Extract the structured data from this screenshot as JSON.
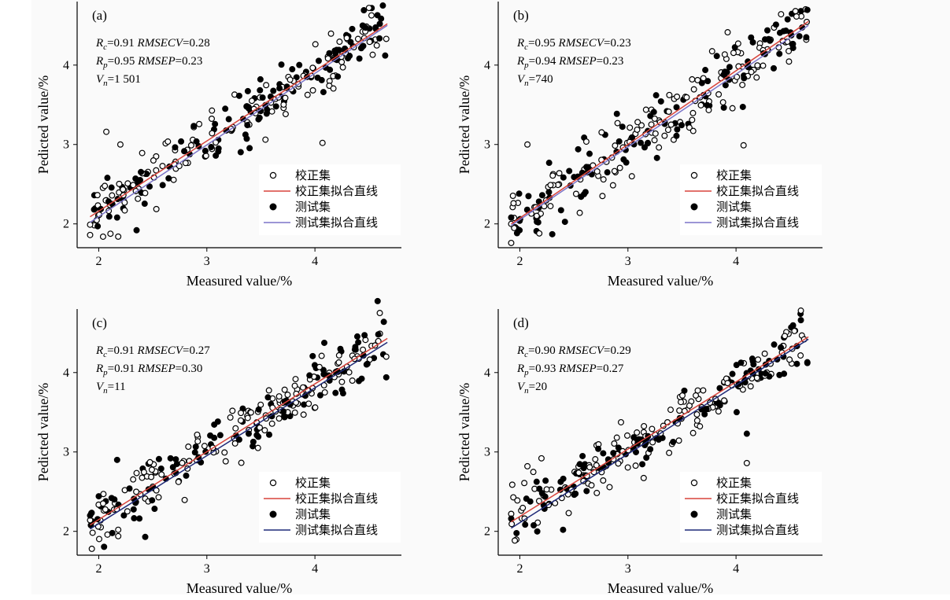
{
  "colors": {
    "calib_line": "#d9443c",
    "test_line_ab": "#7b74c8",
    "test_line_cd": "#1f2a78",
    "marker": "#000000"
  },
  "chart_data": [
    {
      "type": "scatter",
      "panel_label": "(a)",
      "xlabel": "Measured value/%",
      "ylabel": "Pedicted value/%",
      "xlim": [
        1.8,
        4.8
      ],
      "ylim": [
        1.7,
        4.8
      ],
      "xticks": [
        "2",
        "3",
        "4"
      ],
      "yticks": [
        "2",
        "3",
        "4"
      ],
      "stats": {
        "rc": "0.91",
        "rmsecv": "0.28",
        "rp": "0.95",
        "rmsep": "0.23",
        "vn": "1 501"
      },
      "legend": {
        "calib": "校正集",
        "calib_fit": "校正集拟合直线",
        "test": "测试集",
        "test_fit": "测试集拟合直线"
      },
      "calib_fit": {
        "x": [
          1.92,
          4.67
        ],
        "y": [
          2.09,
          4.52
        ]
      },
      "test_fit": {
        "x": [
          1.92,
          4.67
        ],
        "y": [
          2.02,
          4.5
        ]
      },
      "outliers_calib": [
        [
          1.92,
          1.99
        ],
        [
          1.92,
          1.86
        ],
        [
          2.07,
          3.16
        ],
        [
          2.18,
          1.84
        ],
        [
          2.2,
          3.0
        ],
        [
          4.07,
          3.02
        ],
        [
          4.5,
          4.72
        ],
        [
          4.66,
          4.33
        ]
      ],
      "outliers_test": [
        [
          2.08,
          2.58
        ],
        [
          2.17,
          2.08
        ],
        [
          2.35,
          1.92
        ],
        [
          4.6,
          4.52
        ],
        [
          4.65,
          4.12
        ]
      ]
    },
    {
      "type": "scatter",
      "panel_label": "(b)",
      "xlabel": "Measured value/%",
      "ylabel": "Pedicted value/%",
      "xlim": [
        1.8,
        4.8
      ],
      "ylim": [
        1.7,
        4.8
      ],
      "xticks": [
        "2",
        "3",
        "4"
      ],
      "yticks": [
        "2",
        "3",
        "4"
      ],
      "stats": {
        "rc": "0.95",
        "rmsecv": "0.23",
        "rp": "0.94",
        "rmsep": "0.23",
        "vn": "740"
      },
      "legend": {
        "calib": "校正集",
        "calib_fit": "校正集拟合直线",
        "test": "测试集",
        "test_fit": "测试集拟合直线"
      },
      "calib_fit": {
        "x": [
          1.92,
          4.67
        ],
        "y": [
          2.0,
          4.55
        ]
      },
      "test_fit": {
        "x": [
          1.92,
          4.67
        ],
        "y": [
          1.98,
          4.5
        ]
      },
      "outliers_calib": [
        [
          1.92,
          1.76
        ],
        [
          1.92,
          2.0
        ],
        [
          2.07,
          3.0
        ],
        [
          2.18,
          1.88
        ],
        [
          4.07,
          2.99
        ],
        [
          4.55,
          4.68
        ],
        [
          4.65,
          4.32
        ]
      ],
      "outliers_test": [
        [
          1.92,
          2.08
        ],
        [
          2.08,
          2.35
        ],
        [
          2.17,
          2.02
        ],
        [
          2.3,
          1.87
        ],
        [
          4.6,
          4.68
        ],
        [
          4.65,
          4.35
        ]
      ]
    },
    {
      "type": "scatter",
      "panel_label": "(c)",
      "xlabel": "Measured value/%",
      "ylabel": "Pedicted value/%",
      "xlim": [
        1.8,
        4.8
      ],
      "ylim": [
        1.7,
        4.8
      ],
      "xticks": [
        "2",
        "3",
        "4"
      ],
      "yticks": [
        "2",
        "3",
        "4"
      ],
      "stats": {
        "rc": "0.91",
        "rmsecv": "0.27",
        "rp": "0.91",
        "rmsep": "0.30",
        "vn": "11"
      },
      "legend": {
        "calib": "校正集",
        "calib_fit": "校正集拟合直线",
        "test": "测试集",
        "test_fit": "测试集拟合直线"
      },
      "calib_fit": {
        "x": [
          1.92,
          4.67
        ],
        "y": [
          2.08,
          4.43
        ]
      },
      "test_fit": {
        "x": [
          1.92,
          4.67
        ],
        "y": [
          2.03,
          4.38
        ]
      },
      "outliers_calib": [
        [
          1.92,
          2.14
        ],
        [
          2.18,
          1.94
        ],
        [
          2.18,
          2.02
        ],
        [
          4.6,
          4.75
        ],
        [
          4.66,
          4.2
        ]
      ],
      "outliers_test": [
        [
          1.92,
          2.2
        ],
        [
          2.17,
          2.9
        ],
        [
          2.43,
          1.93
        ],
        [
          4.58,
          4.9
        ],
        [
          4.66,
          3.94
        ]
      ]
    },
    {
      "type": "scatter",
      "panel_label": "(d)",
      "xlabel": "Measured value/%",
      "ylabel": "Pedicted value/%",
      "xlim": [
        1.8,
        4.8
      ],
      "ylim": [
        1.7,
        4.8
      ],
      "xticks": [
        "2",
        "3",
        "4"
      ],
      "yticks": [
        "2",
        "3",
        "4"
      ],
      "stats": {
        "rc": "0.90",
        "rmsecv": "0.29",
        "rp": "0.93",
        "rmsep": "0.27",
        "vn": "20"
      },
      "legend": {
        "calib": "校正集",
        "calib_fit": "校正集拟合直线",
        "test": "测试集",
        "test_fit": "测试集拟合直线"
      },
      "calib_fit": {
        "x": [
          1.92,
          4.67
        ],
        "y": [
          2.12,
          4.45
        ]
      },
      "test_fit": {
        "x": [
          1.92,
          4.67
        ],
        "y": [
          2.04,
          4.42
        ]
      },
      "outliers_calib": [
        [
          1.92,
          2.22
        ],
        [
          2.07,
          2.82
        ],
        [
          2.2,
          2.92
        ],
        [
          4.1,
          2.86
        ],
        [
          4.6,
          4.78
        ],
        [
          4.66,
          4.13
        ]
      ],
      "outliers_test": [
        [
          1.92,
          2.16
        ],
        [
          2.4,
          2.02
        ],
        [
          4.1,
          3.23
        ],
        [
          4.6,
          4.66
        ],
        [
          4.66,
          4.12
        ]
      ]
    }
  ]
}
